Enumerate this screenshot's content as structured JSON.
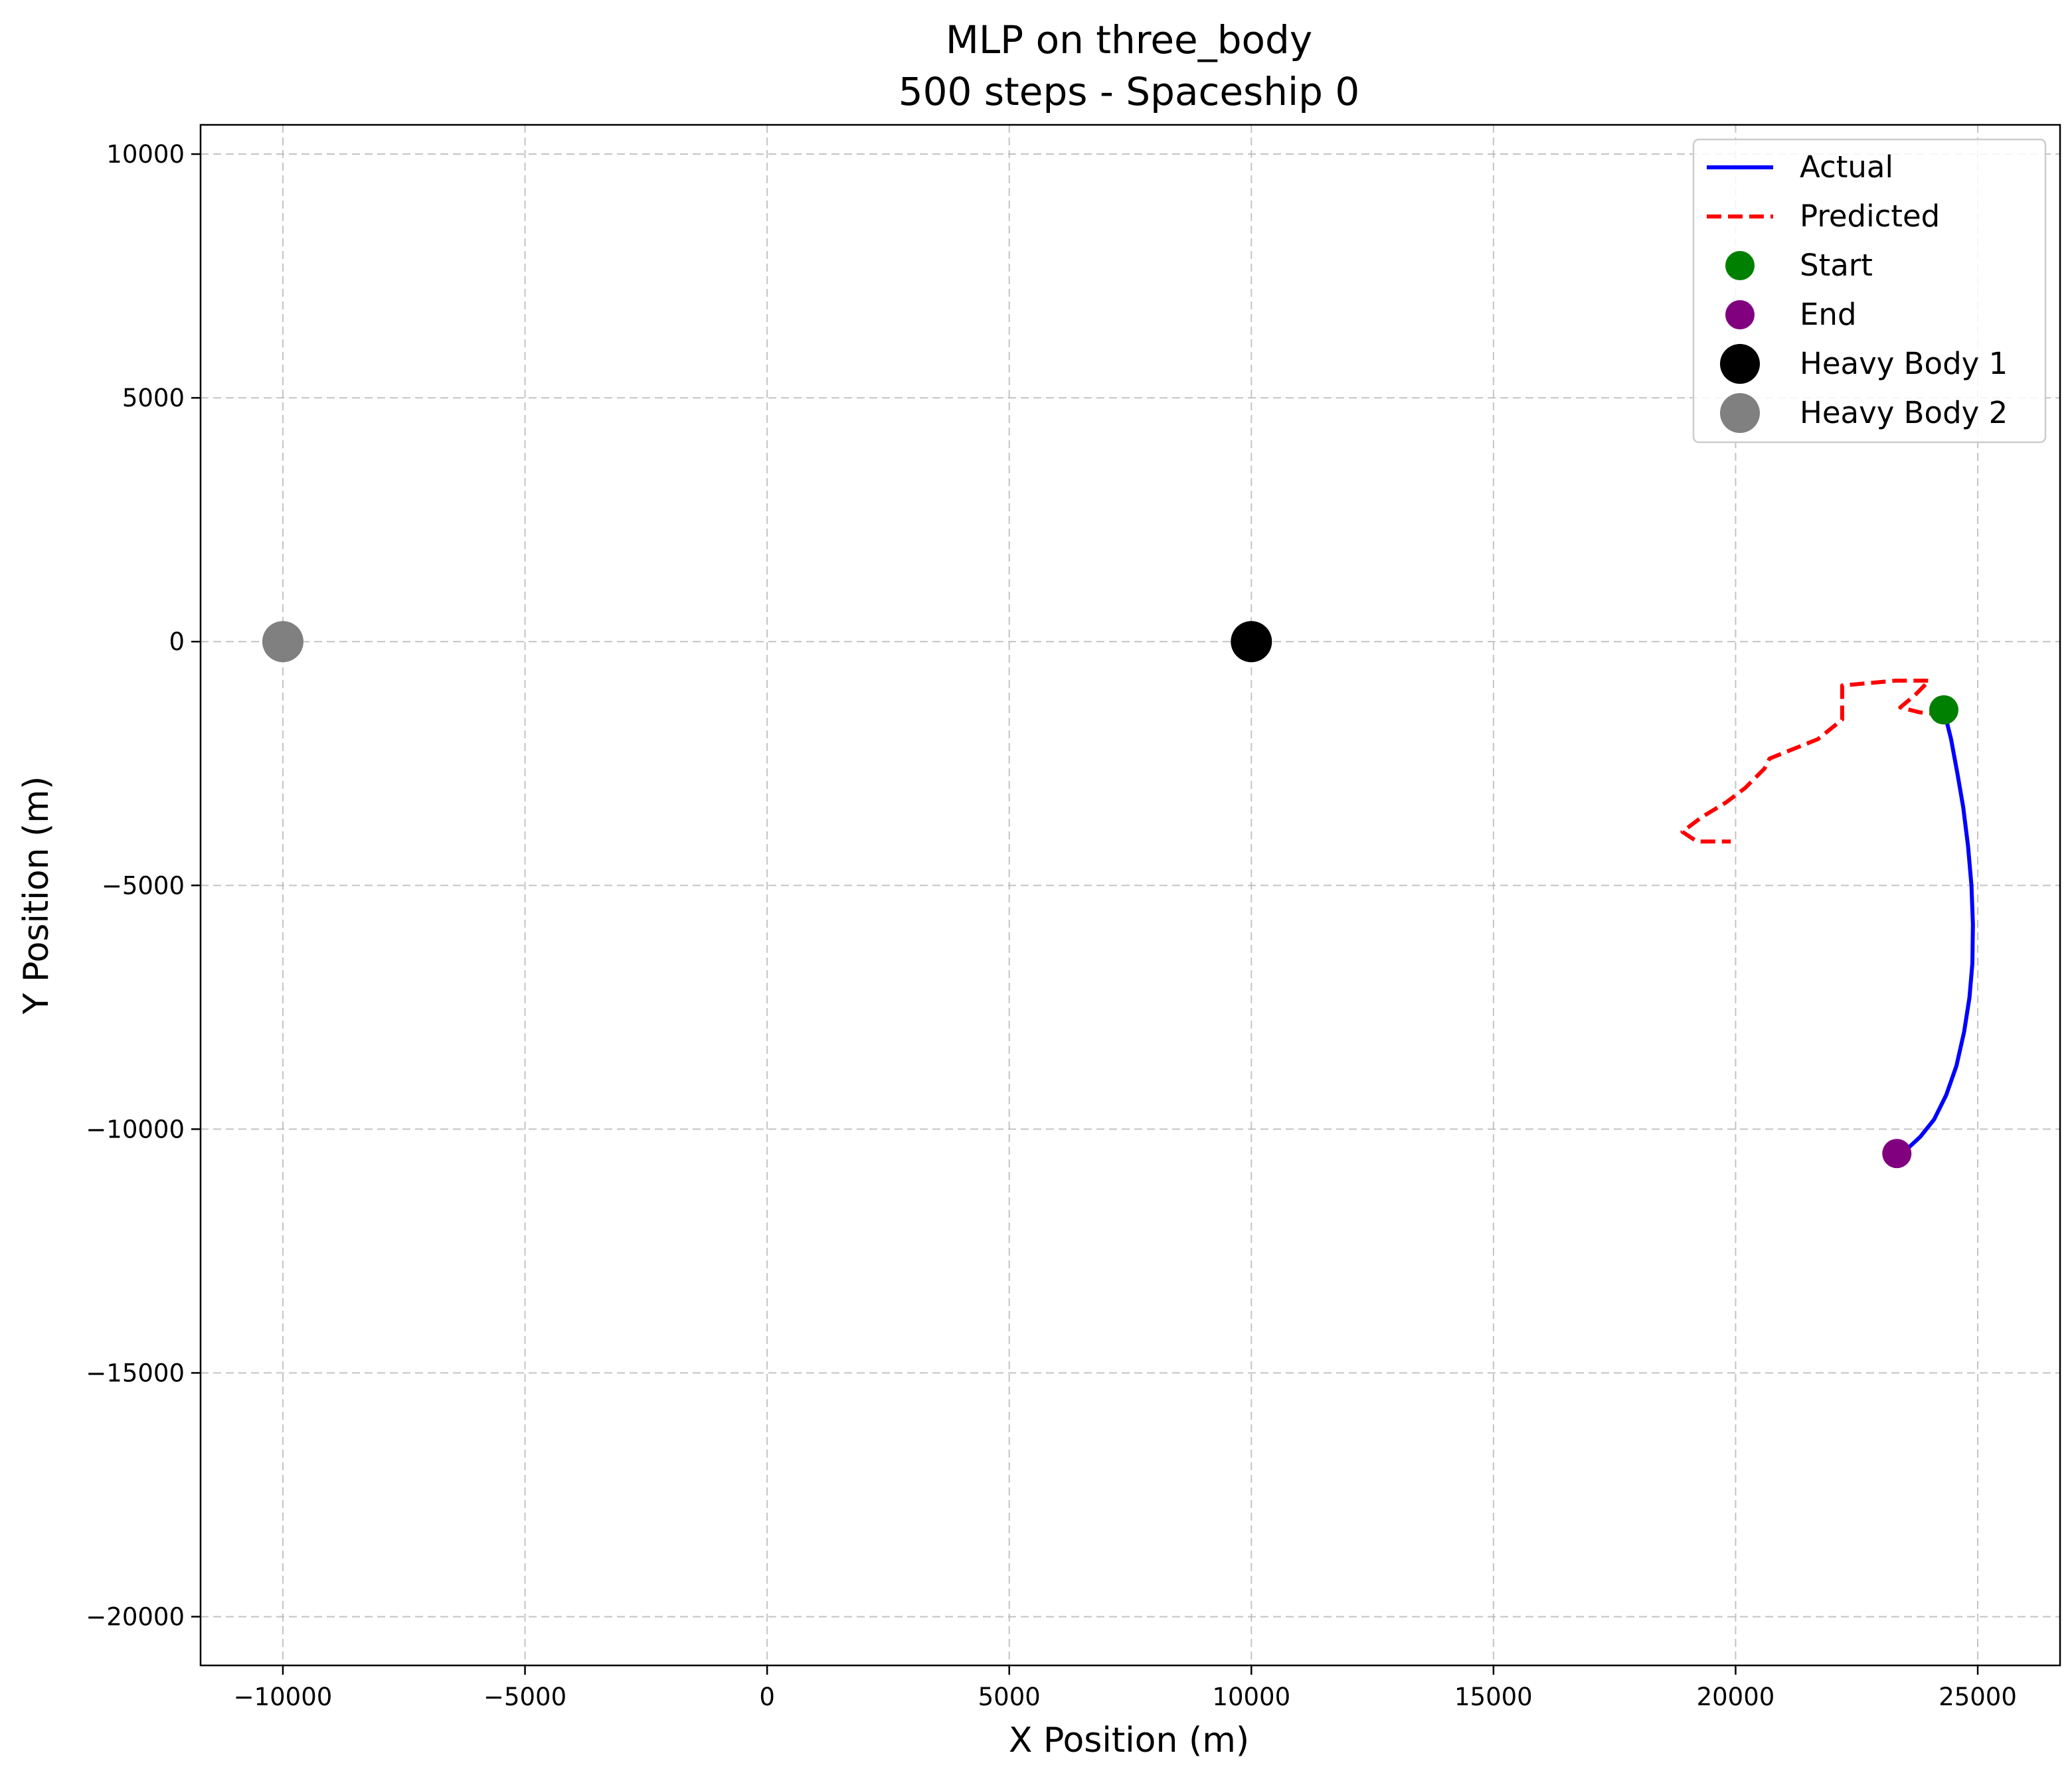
{
  "chart_data": {
    "type": "line",
    "title": "MLP on three_body",
    "subtitle": "500 steps - Spaceship 0",
    "xlabel": "X Position (m)",
    "ylabel": "Y Position (m)",
    "xlim": [
      -11700,
      26700
    ],
    "ylim": [
      -21000,
      10600
    ],
    "xticks": [
      -10000,
      -5000,
      0,
      5000,
      10000,
      15000,
      20000,
      25000
    ],
    "yticks": [
      -20000,
      -15000,
      -10000,
      -5000,
      0,
      5000,
      10000
    ],
    "xtick_labels": [
      "−10000",
      "−5000",
      "0",
      "5000",
      "10000",
      "15000",
      "20000",
      "25000"
    ],
    "ytick_labels": [
      "−20000",
      "−15000",
      "−10000",
      "−5000",
      "0",
      "5000",
      "10000"
    ],
    "grid": true,
    "legend_position": "top-right",
    "series": [
      {
        "name": "Actual",
        "color": "#0000ff",
        "style": "solid",
        "x": [
          24300,
          24450,
          24580,
          24700,
          24800,
          24870,
          24900,
          24890,
          24830,
          24720,
          24560,
          24350,
          24100,
          23820,
          23550,
          23330
        ],
        "y": [
          -1400,
          -2000,
          -2700,
          -3400,
          -4200,
          -5000,
          -5800,
          -6600,
          -7300,
          -8000,
          -8700,
          -9300,
          -9800,
          -10150,
          -10400,
          -10500
        ]
      },
      {
        "name": "Predicted",
        "color": "#ff0000",
        "style": "dashed",
        "x": [
          24300,
          23800,
          23400,
          23700,
          24000,
          23300,
          22200,
          22200,
          21700,
          21200,
          20700,
          20600,
          20200,
          19800,
          19300,
          18900,
          19200,
          19900
        ],
        "y": [
          -1500,
          -1450,
          -1350,
          -1100,
          -800,
          -800,
          -900,
          -1600,
          -2000,
          -2200,
          -2400,
          -2600,
          -3000,
          -3300,
          -3600,
          -3900,
          -4100,
          -4100
        ]
      }
    ],
    "points": [
      {
        "name": "Start",
        "x": 24300,
        "y": -1400,
        "color": "#008000"
      },
      {
        "name": "End",
        "x": 23330,
        "y": -10500,
        "color": "#800080"
      },
      {
        "name": "Heavy Body 1",
        "x": 10000,
        "y": 0,
        "color": "#000000"
      },
      {
        "name": "Heavy Body 2",
        "x": -10000,
        "y": 0,
        "color": "#808080"
      }
    ]
  }
}
